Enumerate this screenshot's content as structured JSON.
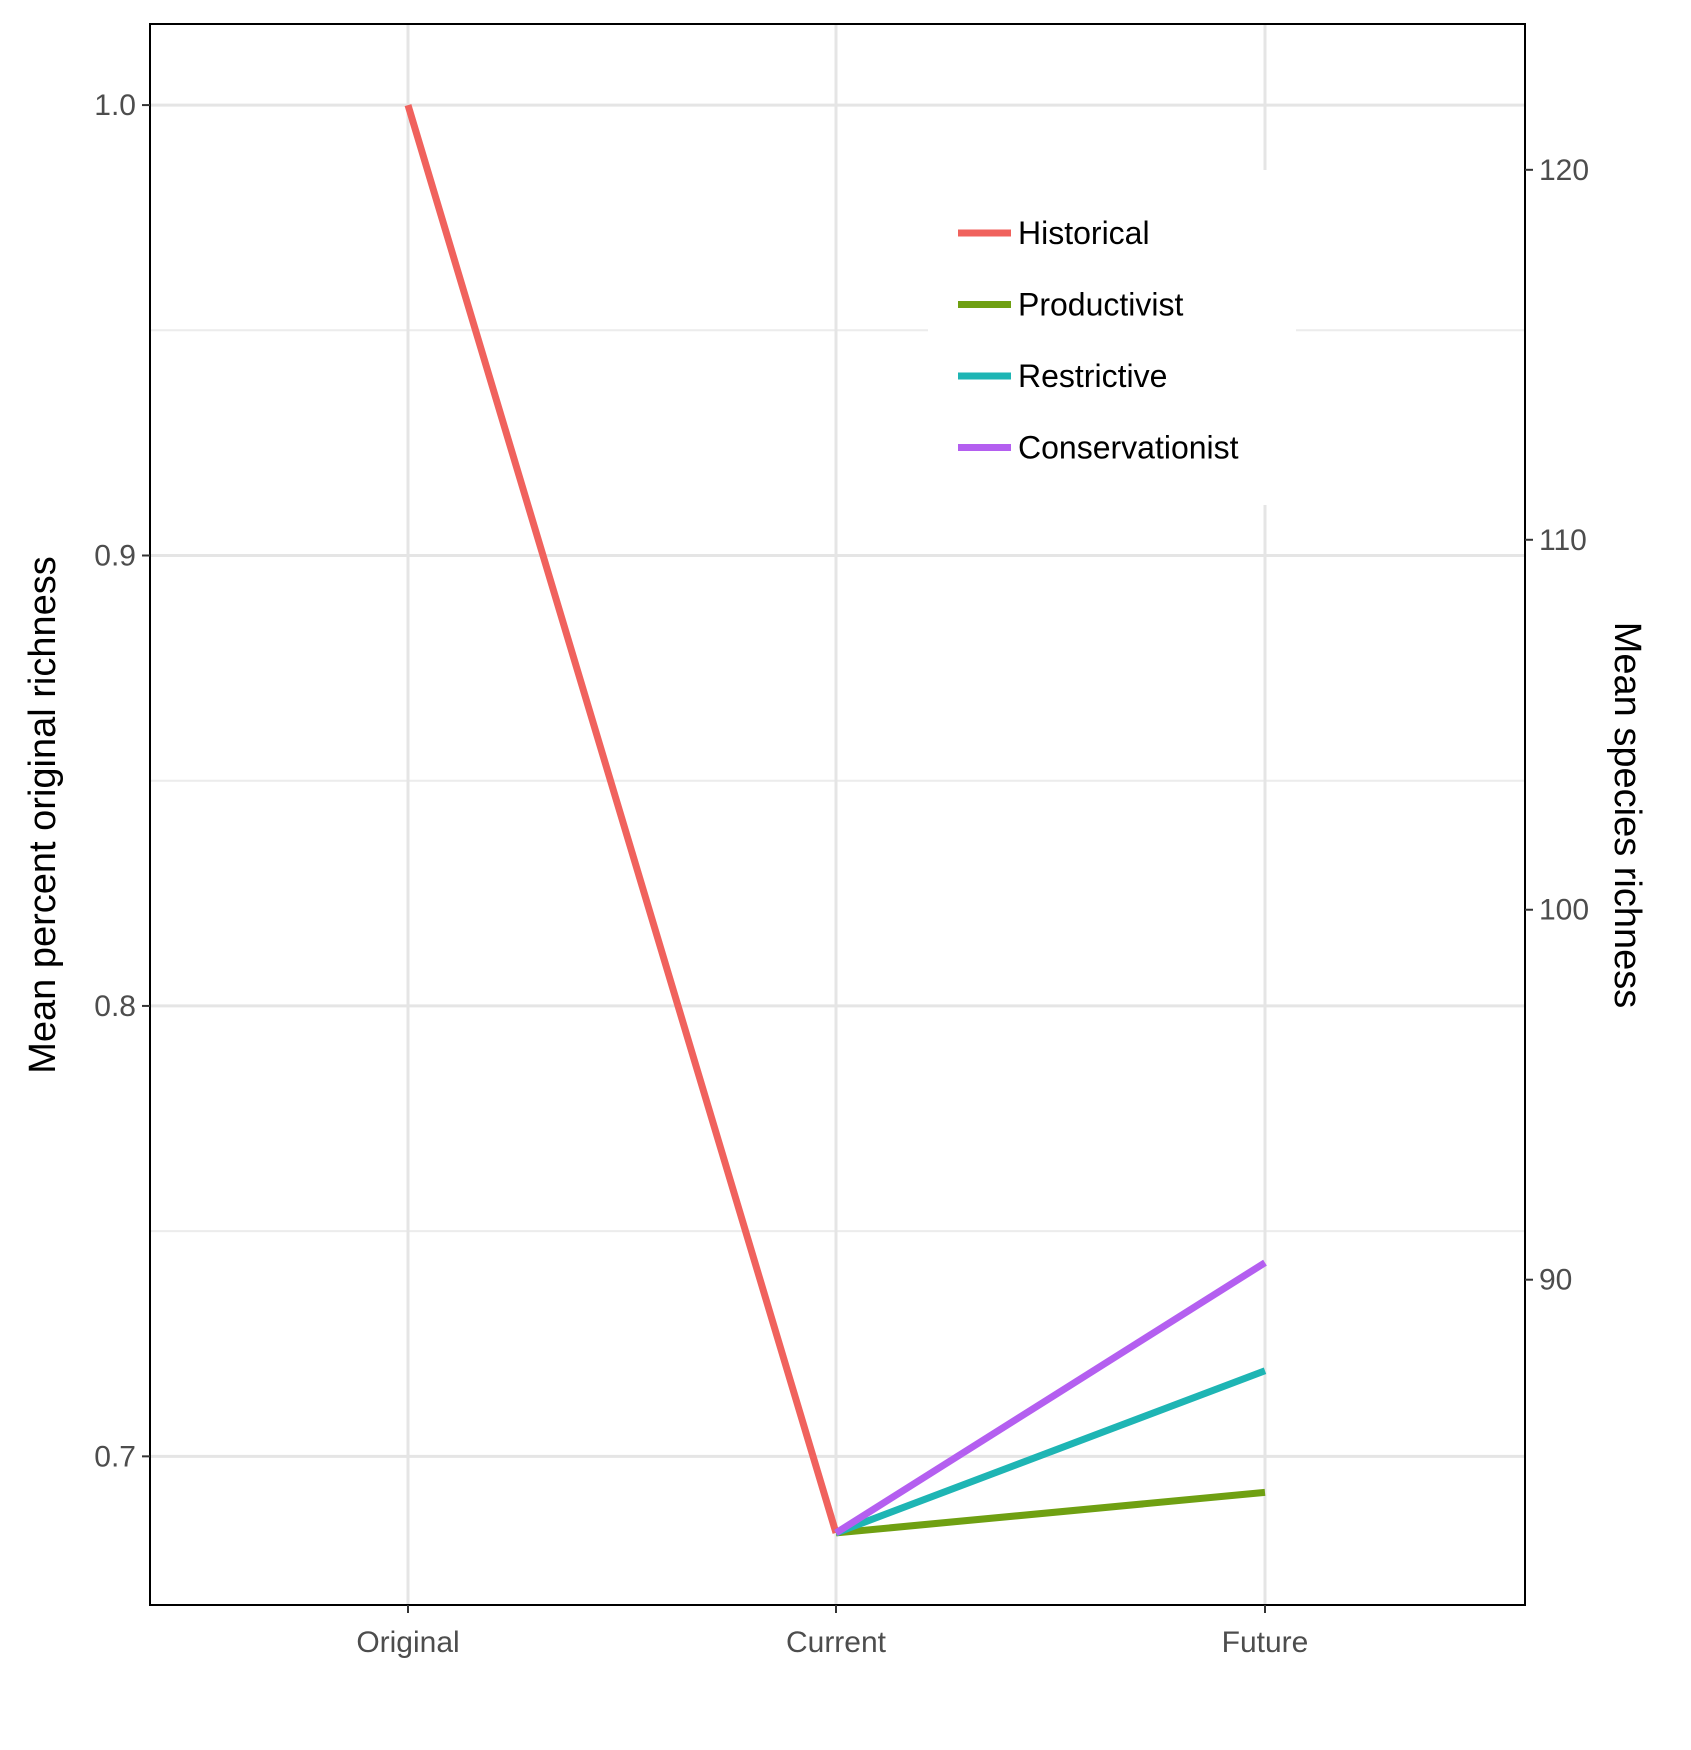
{
  "chart_data": {
    "type": "line",
    "categories": [
      "Original",
      "Current",
      "Future"
    ],
    "left_axis": {
      "label": "Mean percent original richness",
      "range": [
        0.667,
        1.018
      ],
      "ticks": [
        "0.7",
        "0.8",
        "0.9",
        "1.0"
      ],
      "tick_values": [
        0.7,
        0.8,
        0.9,
        1.0
      ],
      "minor_values": [
        0.75,
        0.85,
        0.95
      ]
    },
    "right_axis": {
      "label": "Mean species richness",
      "ticks": [
        "90",
        "100",
        "110",
        "120"
      ],
      "tick_values": [
        90,
        100,
        110,
        120
      ],
      "value_at_1": 121.75
    },
    "grid": true,
    "legend_position": "top-right inside",
    "series": [
      {
        "name": "Historical",
        "color": "#F0625D",
        "points": [
          [
            "Original",
            1.0
          ],
          [
            "Current",
            0.683
          ]
        ]
      },
      {
        "name": "Productivist",
        "color": "#6FA012",
        "points": [
          [
            "Current",
            0.683
          ],
          [
            "Future",
            0.692
          ]
        ]
      },
      {
        "name": "Restrictive",
        "color": "#1EB5B4",
        "points": [
          [
            "Current",
            0.683
          ],
          [
            "Future",
            0.719
          ]
        ]
      },
      {
        "name": "Conservationist",
        "color": "#B45FF0",
        "points": [
          [
            "Current",
            0.683
          ],
          [
            "Future",
            0.743
          ]
        ]
      }
    ]
  }
}
